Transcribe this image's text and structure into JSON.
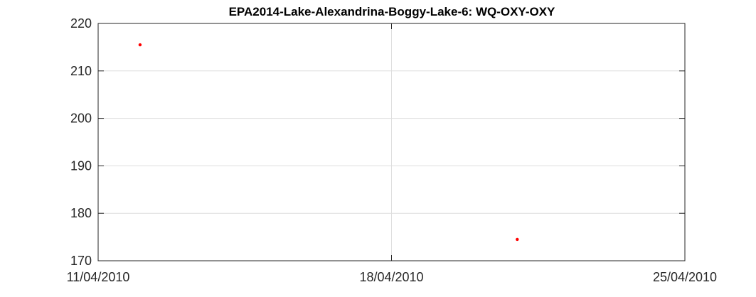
{
  "chart_data": {
    "type": "scatter",
    "title": "EPA2014-Lake-Alexandrina-Boggy-Lake-6: WQ-OXY-OXY",
    "xlabel": "",
    "ylabel": "",
    "x_axis": {
      "type": "date",
      "range": [
        "11/04/2010",
        "25/04/2010"
      ],
      "ticks": [
        "11/04/2010",
        "18/04/2010",
        "25/04/2010"
      ]
    },
    "ylim": [
      170,
      220
    ],
    "yticks": [
      170,
      180,
      190,
      200,
      210,
      220
    ],
    "grid": true,
    "marker_color": "#ff0000",
    "points": [
      {
        "x": "12/04/2010",
        "y": 215.5
      },
      {
        "x": "21/04/2010",
        "y": 174.5
      }
    ]
  }
}
